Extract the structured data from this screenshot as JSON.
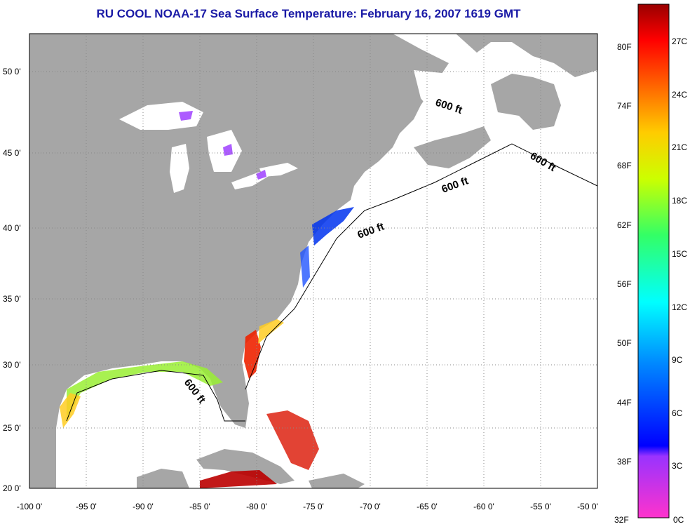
{
  "title": "RU COOL  NOAA-17  Sea Surface Temperature:  February 16, 2007 1619 GMT",
  "x_ticks": [
    "-100 0'",
    "-95 0'",
    "-90 0'",
    "-85 0'",
    "-80 0'",
    "-75 0'",
    "-70 0'",
    "-65 0'",
    "-60 0'",
    "-55 0'",
    "-50 0'"
  ],
  "y_ticks": [
    "20 0'",
    "25 0'",
    "30 0'",
    "35 0'",
    "40 0'",
    "45 0'",
    "50 0'"
  ],
  "isobath_label": "600 ft",
  "colorbar": {
    "fahrenheit": [
      "32F",
      "38F",
      "44F",
      "50F",
      "56F",
      "62F",
      "68F",
      "74F",
      "80F"
    ],
    "celsius": [
      "0C",
      "3C",
      "6C",
      "9C",
      "12C",
      "15C",
      "18C",
      "21C",
      "24C",
      "27C"
    ]
  },
  "colors": {
    "title": "#1a1aa6",
    "land": "#a6a6a6",
    "ocean": "#ffffff"
  }
}
